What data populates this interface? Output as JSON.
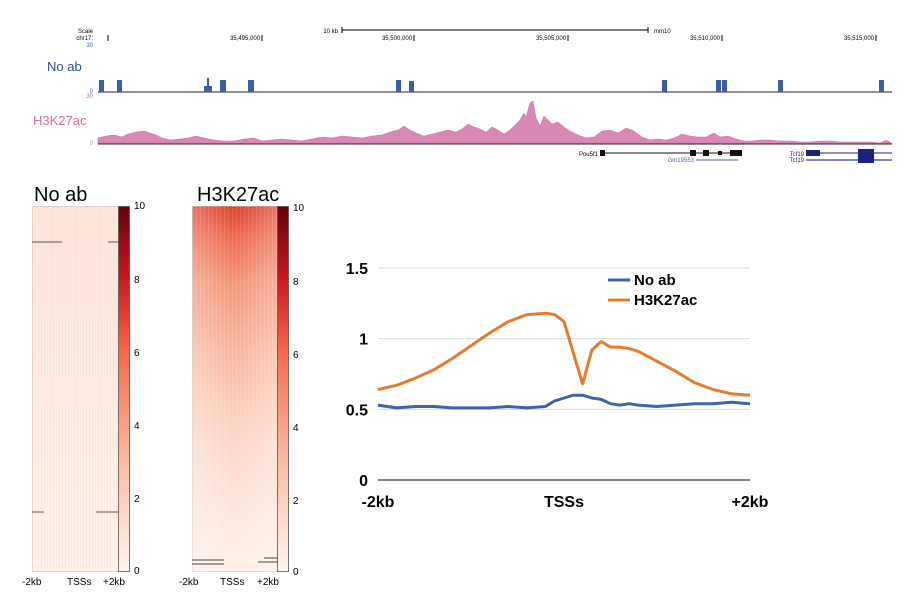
{
  "genome_browser": {
    "scale_label": "Scale",
    "chrom_label": "chr17:",
    "scale_bar_label": "10 kb",
    "assembly_label": "mm10",
    "coord_ticks": [
      "35,495,000",
      "35,500,000",
      "35,505,000",
      "35,510,000",
      "35,515,000"
    ],
    "tracks": [
      {
        "name": "No ab",
        "color": "#3a5fa8",
        "max": "30",
        "min": "0"
      },
      {
        "name": "H3K27ac",
        "color": "#d46fa6",
        "max": "30",
        "min": "0"
      }
    ],
    "genes": [
      "Pou5f1",
      "Gm19553",
      "Tcf19",
      "Tcf19"
    ]
  },
  "chart_data": [
    {
      "type": "heatmap",
      "title": "No ab",
      "x_tick_labels": [
        "-2kb",
        "TSSs",
        "+2kb"
      ],
      "colorbar_range": [
        0,
        10
      ],
      "colorbar_ticks": [
        "0",
        "2",
        "4",
        "6",
        "8",
        "10"
      ],
      "colormap": [
        "#fff5f0",
        "#fcbba1",
        "#fb6a4a",
        "#cb181d",
        "#67000d"
      ]
    },
    {
      "type": "heatmap",
      "title": "H3K27ac",
      "x_tick_labels": [
        "-2kb",
        "TSSs",
        "+2kb"
      ],
      "colorbar_range": [
        0,
        10
      ],
      "colorbar_ticks": [
        "0",
        "2",
        "4",
        "6",
        "8",
        "10"
      ],
      "colormap": [
        "#fff5f0",
        "#fcbba1",
        "#fb6a4a",
        "#cb181d",
        "#67000d"
      ]
    },
    {
      "type": "line",
      "x_tick_labels": [
        "-2kb",
        "TSSs",
        "+2kb"
      ],
      "y_ticks": [
        "0",
        "0.5",
        "1",
        "1.5"
      ],
      "ylim": [
        0,
        1.5
      ],
      "grid": true,
      "legend": "top-right",
      "x": [
        -2000,
        -1800,
        -1600,
        -1400,
        -1200,
        -1000,
        -800,
        -600,
        -400,
        -200,
        -100,
        0,
        100,
        200,
        300,
        400,
        500,
        600,
        700,
        800,
        1000,
        1200,
        1400,
        1600,
        1800,
        2000
      ],
      "series": [
        {
          "name": "No ab",
          "color": "#3d64a8",
          "values": [
            0.53,
            0.51,
            0.52,
            0.52,
            0.51,
            0.51,
            0.51,
            0.52,
            0.51,
            0.52,
            0.56,
            0.58,
            0.6,
            0.6,
            0.58,
            0.57,
            0.54,
            0.53,
            0.54,
            0.53,
            0.52,
            0.53,
            0.54,
            0.54,
            0.55,
            0.54
          ]
        },
        {
          "name": "H3K27ac",
          "color": "#e47c2c",
          "values": [
            0.64,
            0.67,
            0.72,
            0.78,
            0.86,
            0.95,
            1.04,
            1.12,
            1.17,
            1.18,
            1.17,
            1.12,
            0.9,
            0.68,
            0.92,
            0.98,
            0.94,
            0.94,
            0.93,
            0.91,
            0.84,
            0.77,
            0.69,
            0.64,
            0.61,
            0.6
          ]
        }
      ]
    }
  ]
}
